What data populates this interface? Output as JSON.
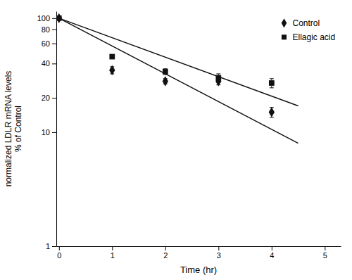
{
  "chart_data": {
    "type": "scatter",
    "xlabel": "Time (hr)",
    "ylabel": "normalized LDLR mRNA levels\n% of Control",
    "log": "y",
    "grid": false,
    "legend": "upper right",
    "xlim": [
      -0.05,
      5.3
    ],
    "xticks": [
      0,
      1,
      2,
      3,
      4,
      5
    ],
    "ylim": [
      1,
      115
    ],
    "yticks": [
      1,
      10,
      20,
      40,
      60,
      80,
      100
    ],
    "series": [
      {
        "type": "line",
        "color": "#111111",
        "x": [
          0,
          4.5
        ],
        "values": [
          100,
          8
        ]
      },
      {
        "type": "line",
        "color": "#111111",
        "x": [
          0,
          4.5
        ],
        "values": [
          100,
          17
        ]
      },
      {
        "name": "Control",
        "type": "scatter",
        "marker": "diamond",
        "color": "#111111",
        "x": [
          0,
          1,
          2,
          3,
          4
        ],
        "values": [
          100,
          35,
          28,
          28,
          15
        ],
        "errors": [
          0,
          2.5,
          1.5,
          2,
          1.5
        ]
      },
      {
        "name": "Ellagic acid",
        "type": "scatter",
        "marker": "square",
        "color": "#111111",
        "x": [
          0,
          1,
          2,
          3,
          4
        ],
        "values": [
          100,
          46,
          34,
          30,
          27
        ],
        "errors": [
          0,
          2,
          2,
          2.5,
          2.5
        ]
      }
    ]
  }
}
